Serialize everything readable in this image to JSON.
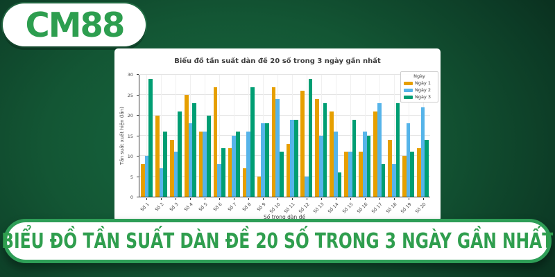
{
  "logo": {
    "text": "CM88"
  },
  "banner": {
    "text": "BIỂU ĐỒ TẦN SUẤT DÀN ĐỀ 20 SỐ TRONG 3 NGÀY GẦN NHẤT"
  },
  "colors": {
    "background_dark": "#071f14",
    "background_mid": "#176a41",
    "brand_green": "#2D9E4F",
    "banner_border": "#2E9E57",
    "card_bg": "#ffffff"
  },
  "chart_data": {
    "type": "bar",
    "title": "Biểu đồ tần suất dàn đề 20 số trong 3 ngày gần nhất",
    "xlabel": "Số trong dàn đề",
    "ylabel": "Tần suất xuất hiện (lần)",
    "ylim": [
      0,
      30
    ],
    "yticks": [
      0,
      5,
      10,
      15,
      20,
      25,
      30
    ],
    "grid": true,
    "legend_title": "Ngày",
    "legend_position": "top-right",
    "categories": [
      "Số 1",
      "Số 2",
      "Số 3",
      "Số 4",
      "Số 5",
      "Số 6",
      "Số 7",
      "Số 8",
      "Số 9",
      "Số 10",
      "Số 11",
      "Số 12",
      "Số 13",
      "Số 14",
      "Số 15",
      "Số 16",
      "Số 17",
      "Số 18",
      "Số 19",
      "Số 20"
    ],
    "series": [
      {
        "name": "Ngày 1",
        "color": "#E69F00",
        "values": [
          8,
          20,
          14,
          25,
          16,
          27,
          12,
          7,
          5,
          27,
          13,
          26,
          24,
          21,
          11,
          11,
          21,
          14,
          10,
          12
        ]
      },
      {
        "name": "Ngày 2",
        "color": "#56B4E9",
        "values": [
          10,
          7,
          11,
          18,
          16,
          8,
          15,
          16,
          18,
          24,
          19,
          5,
          15,
          16,
          11,
          16,
          23,
          8,
          18,
          22
        ]
      },
      {
        "name": "Ngày 3",
        "color": "#009E73",
        "values": [
          29,
          16,
          21,
          23,
          20,
          12,
          16,
          27,
          18,
          11,
          19,
          29,
          23,
          6,
          19,
          15,
          8,
          23,
          11,
          14
        ]
      }
    ]
  }
}
